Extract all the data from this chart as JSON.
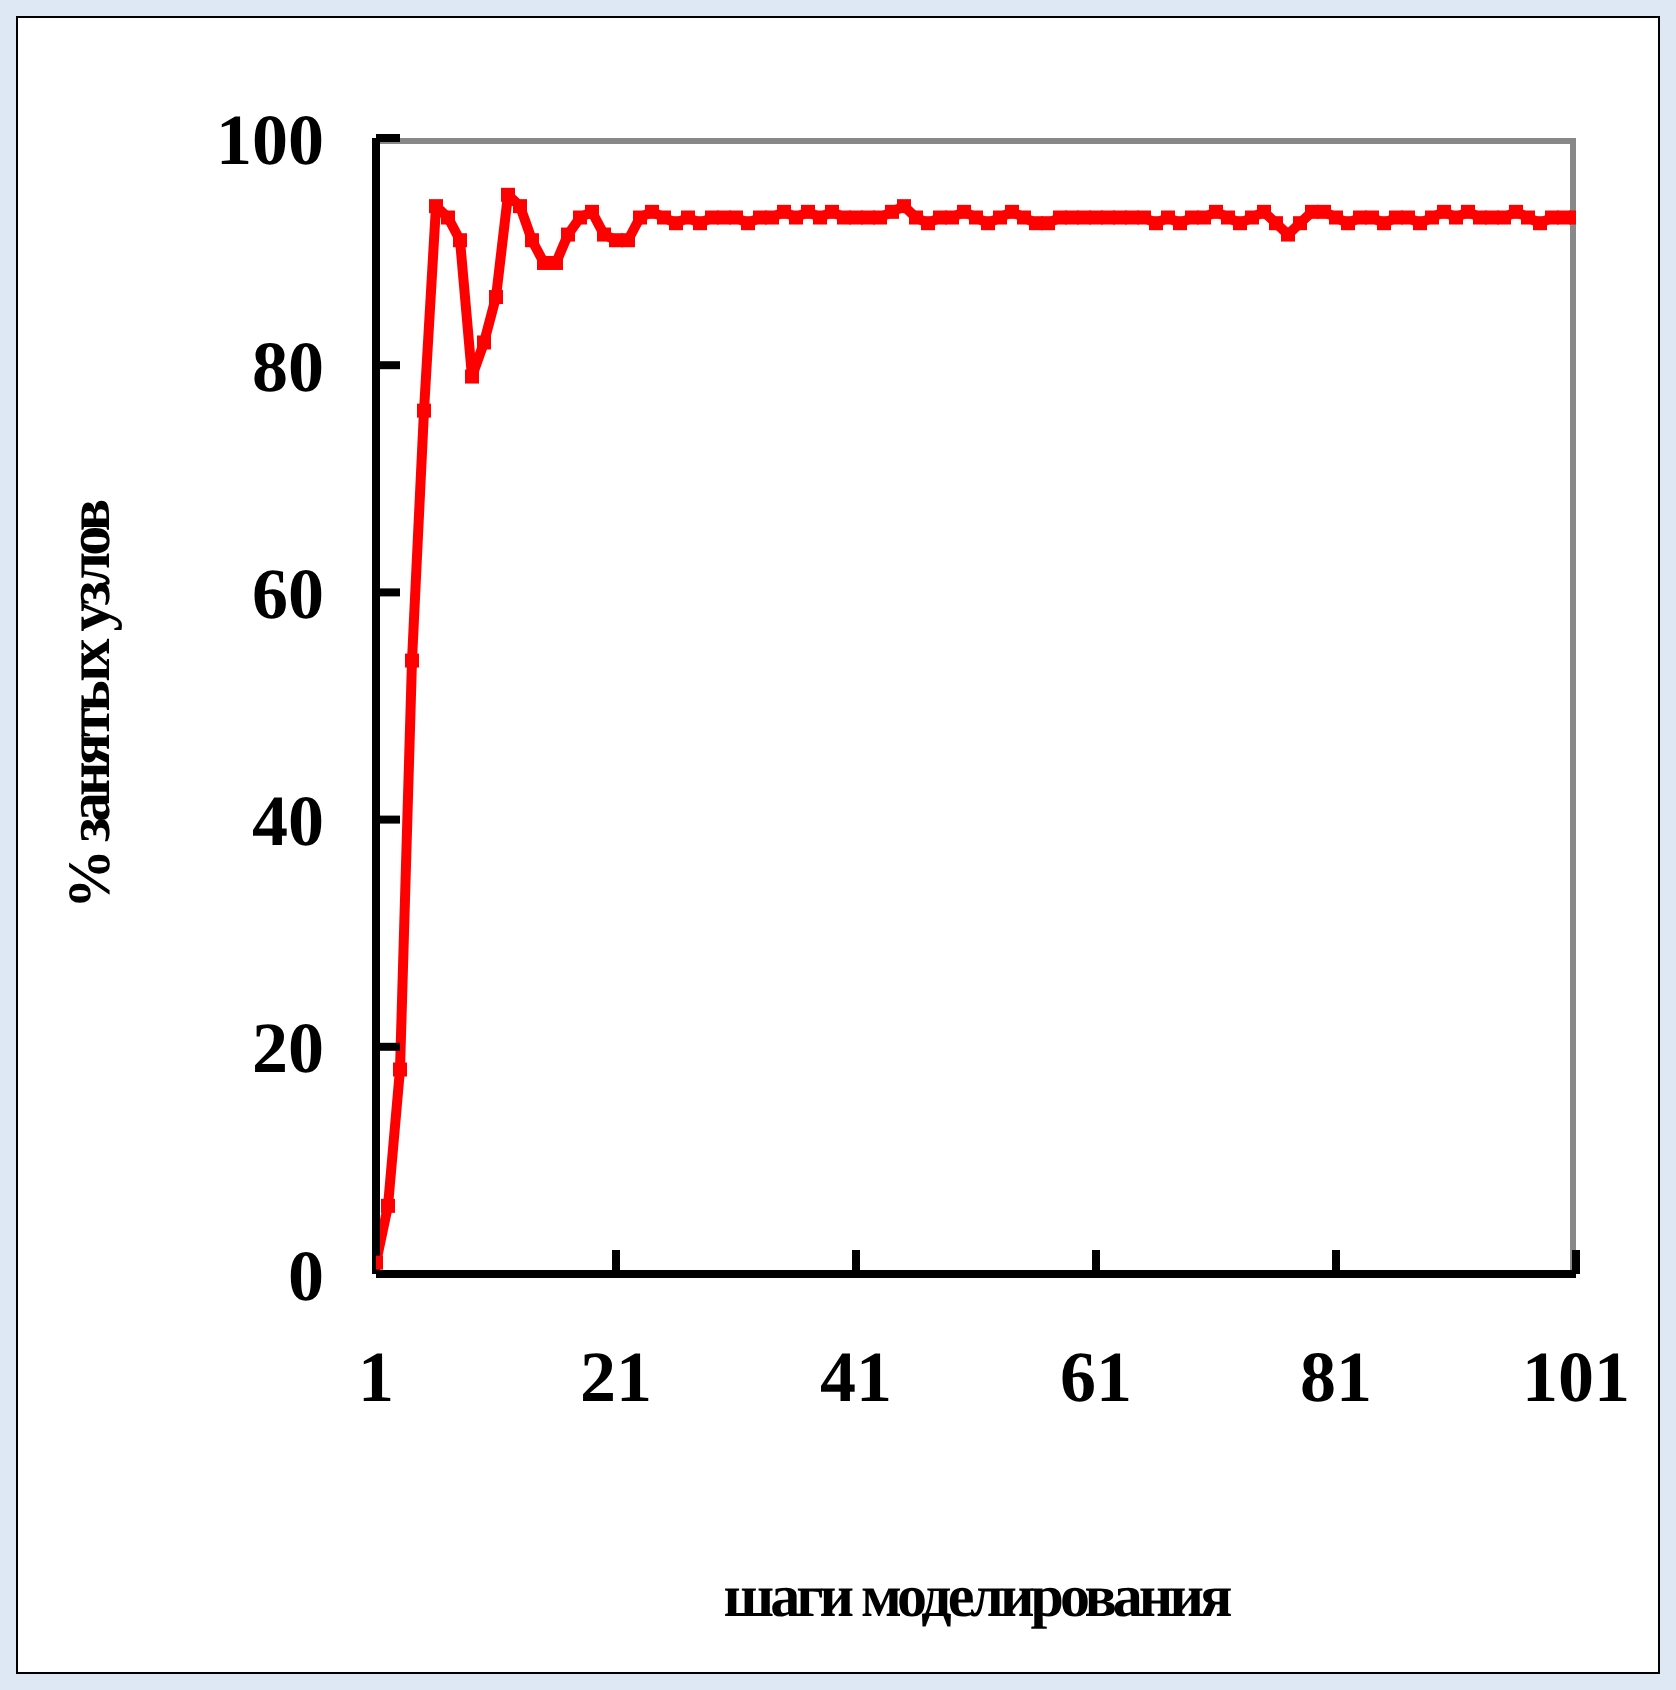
{
  "chart_data": {
    "type": "line",
    "xlabel": "шаги моделирования",
    "ylabel": "% занятых узлов",
    "x": [
      1,
      2,
      3,
      4,
      5,
      6,
      7,
      8,
      9,
      10,
      11,
      12,
      13,
      14,
      15,
      16,
      17,
      18,
      19,
      20,
      21,
      22,
      23,
      24,
      25,
      26,
      27,
      28,
      29,
      30,
      31,
      32,
      33,
      34,
      35,
      36,
      37,
      38,
      39,
      40,
      41,
      42,
      43,
      44,
      45,
      46,
      47,
      48,
      49,
      50,
      51,
      52,
      53,
      54,
      55,
      56,
      57,
      58,
      59,
      60,
      61,
      62,
      63,
      64,
      65,
      66,
      67,
      68,
      69,
      70,
      71,
      72,
      73,
      74,
      75,
      76,
      77,
      78,
      79,
      80,
      81,
      82,
      83,
      84,
      85,
      86,
      87,
      88,
      89,
      90,
      91,
      92,
      93,
      94,
      95,
      96,
      97,
      98,
      99,
      100,
      101
    ],
    "series": [
      {
        "color": "#ff0000",
        "values": [
          1,
          6,
          18,
          54,
          76,
          94,
          93,
          91,
          79,
          82,
          86,
          95,
          94,
          91,
          89,
          89,
          91.5,
          93,
          93.5,
          91.5,
          91,
          91,
          93,
          93.5,
          93,
          92.5,
          93,
          92.5,
          93,
          93,
          93,
          92.5,
          93,
          93,
          93.5,
          93,
          93.5,
          93,
          93.5,
          93,
          93,
          93,
          93,
          93.5,
          94,
          93,
          92.5,
          93,
          93,
          93.5,
          93,
          92.5,
          93,
          93.5,
          93,
          92.5,
          92.5,
          93,
          93,
          93,
          93,
          93,
          93,
          93,
          93,
          92.5,
          93,
          92.5,
          93,
          93,
          93.5,
          93,
          92.5,
          93,
          93.5,
          92.5,
          91.5,
          92.5,
          93.5,
          93.5,
          93,
          92.5,
          93,
          93,
          92.5,
          93,
          93,
          92.5,
          93,
          93.5,
          93,
          93.5,
          93,
          93,
          93,
          93.5,
          93,
          92.5,
          93,
          93,
          93
        ]
      }
    ],
    "xlim": [
      1,
      101
    ],
    "xticks": [
      1,
      21,
      41,
      61,
      81,
      101
    ],
    "ylim": [
      0,
      100
    ],
    "yticks": [
      0,
      20,
      40,
      60,
      80,
      100
    ],
    "grid": false,
    "legend": false,
    "marker": "square",
    "line_style": "solid"
  }
}
